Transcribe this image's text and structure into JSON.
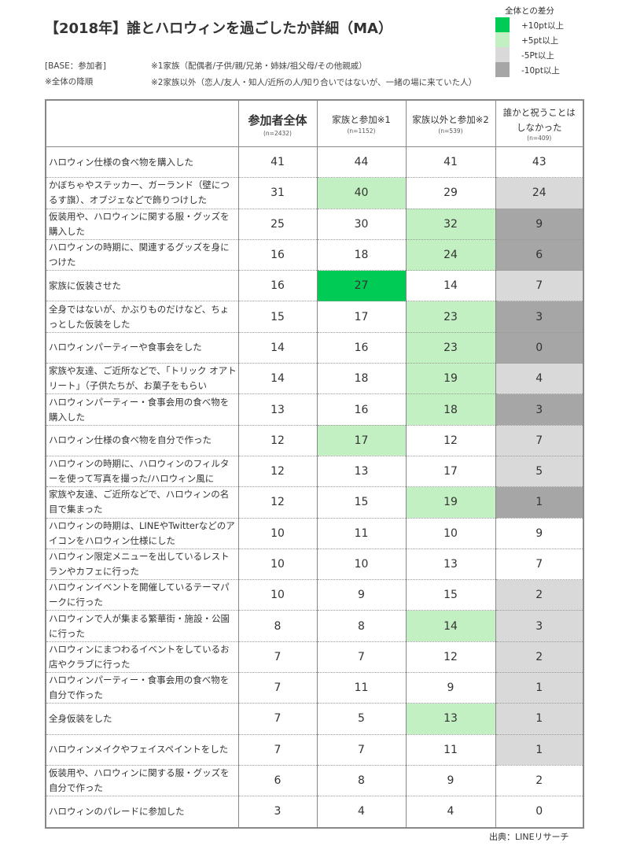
{
  "title": "【2018年】誰とハロウィンを過ごしたか詳細（MA）",
  "legend": {
    "title": "全体との差分",
    "items": [
      {
        "label": "+10pt以上",
        "color": "#00cc55"
      },
      {
        "label": "+5pt以上",
        "color": "#c2f0c2"
      },
      {
        "label": "-5Pt以上",
        "color": "#d9d9d9"
      },
      {
        "label": "-10pt以上",
        "color": "#a6a6a6"
      }
    ]
  },
  "notes": {
    "base": "[BASE：参加者]",
    "order": "※全体の降順",
    "note1": "※1家族（配偶者/子供/親/兄弟・姉妹/祖父母/その他親戚）",
    "note2": "※2家族以外（恋人/友人・知人/近所の人/知り合いではないが、一緒の場に来ていた人）"
  },
  "columns": [
    {
      "label": "参加者全体",
      "n": "(n=2432)"
    },
    {
      "label": "家族と参加※1",
      "n": "(n=1152)"
    },
    {
      "label": "家族以外と参加※2",
      "n": "(n=539)"
    },
    {
      "label": "誰かと祝うことはしなかった",
      "n": "(n=409)"
    }
  ],
  "rows": [
    {
      "label": "ハロウィン仕様の食べ物を購入した",
      "values": [
        41,
        44,
        41,
        43
      ],
      "levels": [
        "",
        "",
        "",
        ""
      ]
    },
    {
      "label": "かぼちゃやステッカー、ガーランド（壁につるす旗）、オブジェなどで飾りつけした",
      "values": [
        31,
        40,
        29,
        24
      ],
      "levels": [
        "",
        "+5",
        "",
        "-5"
      ]
    },
    {
      "label": "仮装用や、ハロウィンに関する服・グッズを購入した",
      "values": [
        25,
        30,
        32,
        9
      ],
      "levels": [
        "",
        "",
        "+5",
        "-10"
      ]
    },
    {
      "label": "ハロウィンの時期に、関連するグッズを身につけた",
      "values": [
        16,
        18,
        24,
        6
      ],
      "levels": [
        "",
        "",
        "+5",
        "-10"
      ]
    },
    {
      "label": "家族に仮装させた",
      "values": [
        16,
        27,
        14,
        7
      ],
      "levels": [
        "",
        "+10",
        "",
        "-5"
      ]
    },
    {
      "label": "全身ではないが、かぶりものだけなど、ちょっとした仮装をした",
      "values": [
        15,
        17,
        23,
        3
      ],
      "levels": [
        "",
        "",
        "+5",
        "-10"
      ]
    },
    {
      "label": "ハロウィンパーティーや食事会をした",
      "values": [
        14,
        16,
        23,
        0
      ],
      "levels": [
        "",
        "",
        "+5",
        "-10"
      ]
    },
    {
      "label": "家族や友達、ご近所などで、「トリック オアトリート」（子供たちが、お菓子をもらい",
      "values": [
        14,
        18,
        19,
        4
      ],
      "levels": [
        "",
        "",
        "+5",
        "-5"
      ]
    },
    {
      "label": "ハロウィンパーティー・食事会用の食べ物を購入した",
      "values": [
        13,
        16,
        18,
        3
      ],
      "levels": [
        "",
        "",
        "+5",
        "-10"
      ]
    },
    {
      "label": "ハロウィン仕様の食べ物を自分で作った",
      "values": [
        12,
        17,
        12,
        7
      ],
      "levels": [
        "",
        "+5",
        "",
        "-5"
      ]
    },
    {
      "label": "ハロウィンの時期に、ハロウィンのフィルターを使って写真を撮った/ハロウィン風に",
      "values": [
        12,
        13,
        17,
        5
      ],
      "levels": [
        "",
        "",
        "",
        "-5"
      ]
    },
    {
      "label": "家族や友達、ご近所などで、ハロウィンの名目で集まった",
      "values": [
        12,
        15,
        19,
        1
      ],
      "levels": [
        "",
        "",
        "+5",
        "-10"
      ]
    },
    {
      "label": "ハロウィンの時期は、LINEやTwitterなどのアイコンをハロウィン仕様にした",
      "values": [
        10,
        11,
        10,
        9
      ],
      "levels": [
        "",
        "",
        "",
        ""
      ]
    },
    {
      "label": "ハロウィン限定メニューを出しているレストランやカフェに行った",
      "values": [
        10,
        10,
        13,
        7
      ],
      "levels": [
        "",
        "",
        "",
        ""
      ]
    },
    {
      "label": "ハロウィンイベントを開催しているテーマパークに行った",
      "values": [
        10,
        9,
        15,
        2
      ],
      "levels": [
        "",
        "",
        "",
        "-5"
      ]
    },
    {
      "label": "ハロウィンで人が集まる繁華街・施設・公園に行った",
      "values": [
        8,
        8,
        14,
        3
      ],
      "levels": [
        "",
        "",
        "+5",
        "-5"
      ]
    },
    {
      "label": "ハロウィンにまつわるイベントをしているお店やクラブに行った",
      "values": [
        7,
        7,
        12,
        2
      ],
      "levels": [
        "",
        "",
        "",
        "-5"
      ]
    },
    {
      "label": "ハロウィンパーティー・食事会用の食べ物を自分で作った",
      "values": [
        7,
        11,
        9,
        1
      ],
      "levels": [
        "",
        "",
        "",
        "-5"
      ]
    },
    {
      "label": "全身仮装をした",
      "values": [
        7,
        5,
        13,
        1
      ],
      "levels": [
        "",
        "",
        "+5",
        "-5"
      ]
    },
    {
      "label": "ハロウィンメイクやフェイスペイントをした",
      "values": [
        7,
        7,
        11,
        1
      ],
      "levels": [
        "",
        "",
        "",
        "-5"
      ]
    },
    {
      "label": "仮装用や、ハロウィンに関する服・グッズを自分で作った",
      "values": [
        6,
        8,
        9,
        2
      ],
      "levels": [
        "",
        "",
        "",
        ""
      ]
    },
    {
      "label": "ハロウィンのパレードに参加した",
      "values": [
        3,
        4,
        4,
        0
      ],
      "levels": [
        "",
        "",
        "",
        ""
      ]
    }
  ],
  "source": "出典：LINEリサーチ"
}
